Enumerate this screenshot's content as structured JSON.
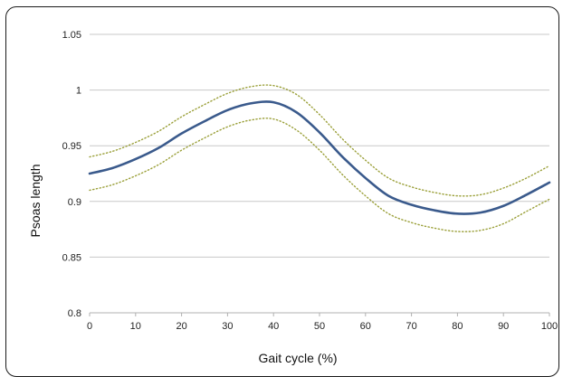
{
  "chart_data": {
    "type": "line",
    "title": "",
    "xlabel": "Gait cycle (%)",
    "ylabel": "Psoas length",
    "xlim": [
      0,
      100
    ],
    "ylim": [
      0.8,
      1.05
    ],
    "x_ticks": [
      0,
      10,
      20,
      30,
      40,
      50,
      60,
      70,
      80,
      90,
      100
    ],
    "y_ticks": [
      0.8,
      0.85,
      0.9,
      0.95,
      1,
      1.05
    ],
    "x_tick_labels": [
      "0",
      "10",
      "20",
      "30",
      "40",
      "50",
      "60",
      "70",
      "80",
      "90",
      "100"
    ],
    "y_tick_labels": [
      "0.8",
      "0.85",
      "0.9",
      "0.95",
      "1",
      "1.05"
    ],
    "grid": "horizontal",
    "legend": "none",
    "x": [
      0,
      5,
      10,
      15,
      20,
      25,
      30,
      35,
      40,
      45,
      50,
      55,
      60,
      65,
      70,
      75,
      80,
      85,
      90,
      95,
      100
    ],
    "series": [
      {
        "style": "solid",
        "color": "#3a5a8c",
        "values": [
          0.925,
          0.93,
          0.938,
          0.948,
          0.961,
          0.972,
          0.982,
          0.988,
          0.989,
          0.98,
          0.962,
          0.94,
          0.921,
          0.905,
          0.897,
          0.892,
          0.889,
          0.89,
          0.896,
          0.906,
          0.917
        ]
      },
      {
        "style": "dotted",
        "color": "#9ba03a",
        "values": [
          0.94,
          0.945,
          0.953,
          0.963,
          0.976,
          0.987,
          0.997,
          1.003,
          1.004,
          0.996,
          0.978,
          0.956,
          0.937,
          0.921,
          0.913,
          0.908,
          0.905,
          0.906,
          0.912,
          0.921,
          0.932
        ]
      },
      {
        "style": "dotted",
        "color": "#9ba03a",
        "values": [
          0.91,
          0.915,
          0.923,
          0.933,
          0.946,
          0.957,
          0.967,
          0.973,
          0.974,
          0.964,
          0.946,
          0.924,
          0.905,
          0.889,
          0.881,
          0.876,
          0.873,
          0.874,
          0.88,
          0.891,
          0.902
        ]
      }
    ]
  }
}
